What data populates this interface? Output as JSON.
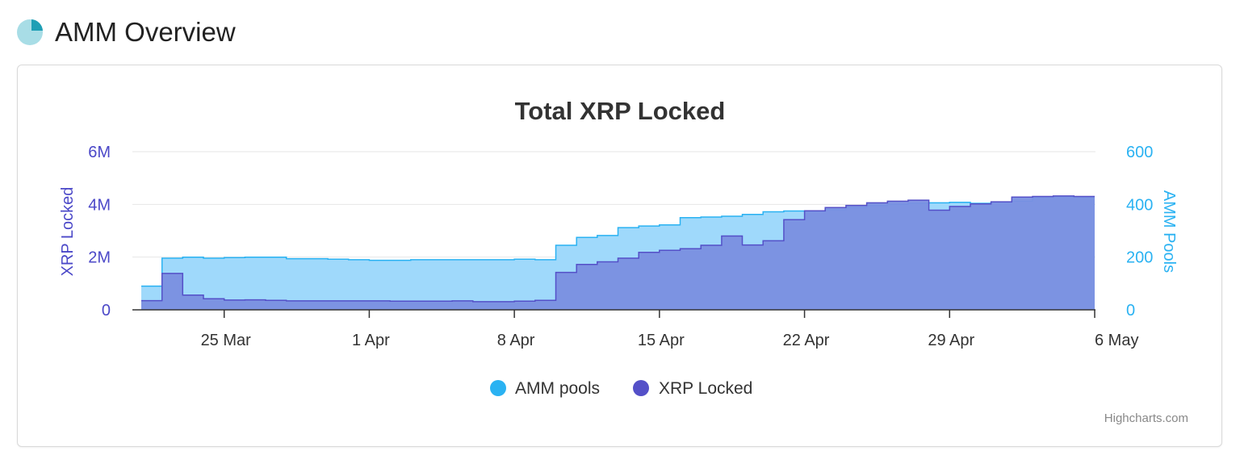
{
  "header": {
    "title": "AMM Overview",
    "icon": "pie-chart-icon"
  },
  "colors": {
    "amm_pools": "#2ab2f2",
    "xrp_locked": "#5450c8",
    "amm_pools_fill": "#9fd9fb",
    "xrp_locked_fill": "#7a8fe0"
  },
  "chart_data": {
    "type": "area",
    "step": true,
    "title": "Total XRP Locked",
    "x_ticks": [
      "25 Mar",
      "1 Apr",
      "8 Apr",
      "15 Apr",
      "22 Apr",
      "29 Apr",
      "6 May"
    ],
    "x_tick_dates": [
      "2024-03-25",
      "2024-04-01",
      "2024-04-08",
      "2024-04-15",
      "2024-04-22",
      "2024-04-29",
      "2024-05-06"
    ],
    "y_left": {
      "label": "XRP Locked",
      "ticks": [
        "0",
        "2M",
        "4M",
        "6M"
      ],
      "range": [
        0,
        6000000
      ]
    },
    "y_right": {
      "label": "AMM Pools",
      "ticks": [
        "0",
        "200",
        "400",
        "600"
      ],
      "range": [
        0,
        600
      ]
    },
    "grid": true,
    "legend_position": "bottom-center",
    "dates": [
      "2024-03-21",
      "2024-03-22",
      "2024-03-23",
      "2024-03-24",
      "2024-03-25",
      "2024-03-26",
      "2024-03-27",
      "2024-03-28",
      "2024-03-29",
      "2024-03-30",
      "2024-03-31",
      "2024-04-01",
      "2024-04-02",
      "2024-04-03",
      "2024-04-04",
      "2024-04-05",
      "2024-04-06",
      "2024-04-07",
      "2024-04-08",
      "2024-04-09",
      "2024-04-10",
      "2024-04-11",
      "2024-04-12",
      "2024-04-13",
      "2024-04-14",
      "2024-04-15",
      "2024-04-16",
      "2024-04-17",
      "2024-04-18",
      "2024-04-19",
      "2024-04-20",
      "2024-04-21",
      "2024-04-22",
      "2024-04-23",
      "2024-04-24",
      "2024-04-25",
      "2024-04-26",
      "2024-04-27",
      "2024-04-28",
      "2024-04-29",
      "2024-04-30",
      "2024-05-01",
      "2024-05-02",
      "2024-05-03",
      "2024-05-04",
      "2024-05-05"
    ],
    "series": [
      {
        "name": "AMM pools",
        "axis": "right",
        "values": [
          90,
          196,
          200,
          196,
          198,
          200,
          200,
          194,
          194,
          192,
          190,
          188,
          188,
          190,
          190,
          190,
          190,
          190,
          192,
          190,
          245,
          275,
          282,
          312,
          318,
          322,
          350,
          352,
          355,
          362,
          372,
          375,
          373,
          380,
          388,
          396,
          400,
          404,
          406,
          408,
          404,
          408,
          412,
          428,
          430,
          428
        ]
      },
      {
        "name": "XRP Locked",
        "axis": "left",
        "values": [
          350000,
          1380000,
          560000,
          420000,
          370000,
          380000,
          360000,
          340000,
          340000,
          340000,
          340000,
          340000,
          330000,
          330000,
          330000,
          340000,
          310000,
          310000,
          330000,
          360000,
          1420000,
          1720000,
          1820000,
          1960000,
          2180000,
          2260000,
          2320000,
          2450000,
          2800000,
          2460000,
          2620000,
          3420000,
          3760000,
          3880000,
          3960000,
          4060000,
          4120000,
          4160000,
          3780000,
          3920000,
          4020000,
          4100000,
          4280000,
          4300000,
          4320000,
          4300000
        ]
      }
    ],
    "credits": "Highcharts.com"
  }
}
